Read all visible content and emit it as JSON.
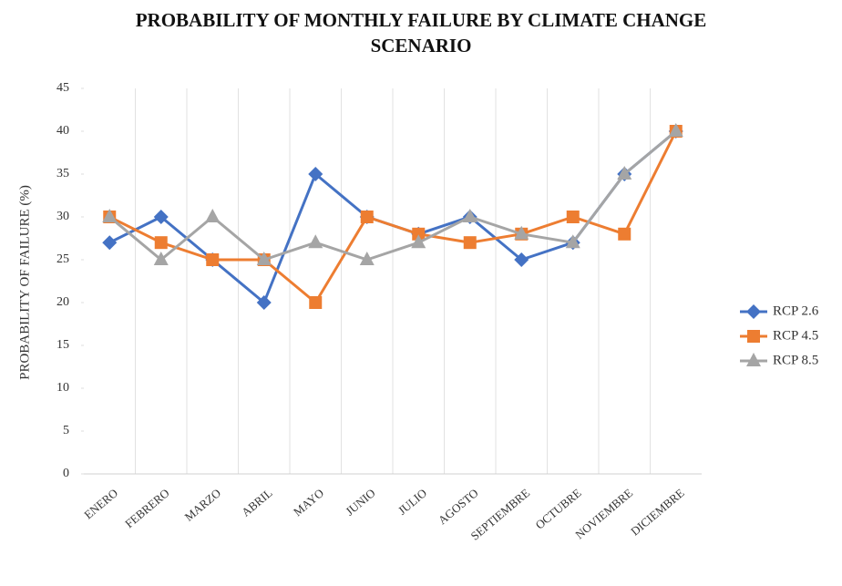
{
  "chart_data": {
    "type": "line",
    "title": "PROBABILITY OF MONTHLY FAILURE BY CLIMATE CHANGE SCENARIO",
    "y_label": "PROBABILITY OF FAILURE (%)",
    "categories": [
      "ENERO",
      "FEBRERO",
      "MARZO",
      "ABRIL",
      "MAYO",
      "JUNIO",
      "JULIO",
      "AGOSTO",
      "SEPTIEMBRE",
      "OCTUBRE",
      "NOVIEMBRE",
      "DICIEMBRE"
    ],
    "series": [
      {
        "name": "RCP 2.6",
        "color": "#4472c4",
        "marker": "diamond",
        "values": [
          27,
          30,
          25,
          20,
          35,
          30,
          28,
          30,
          25,
          27,
          35,
          40
        ]
      },
      {
        "name": "RCP 4.5",
        "color": "#ed7d31",
        "marker": "square",
        "values": [
          30,
          27,
          25,
          25,
          20,
          30,
          28,
          27,
          28,
          30,
          28,
          40
        ]
      },
      {
        "name": "RCP 8.5",
        "color": "#a5a5a5",
        "marker": "triangle",
        "values": [
          30,
          25,
          30,
          25,
          27,
          25,
          27,
          30,
          28,
          27,
          35,
          40
        ]
      }
    ],
    "ylim": [
      0,
      45
    ],
    "yticks": [
      0,
      5,
      10,
      15,
      20,
      25,
      30,
      35,
      40,
      45
    ],
    "grid": true,
    "legend": "right"
  }
}
